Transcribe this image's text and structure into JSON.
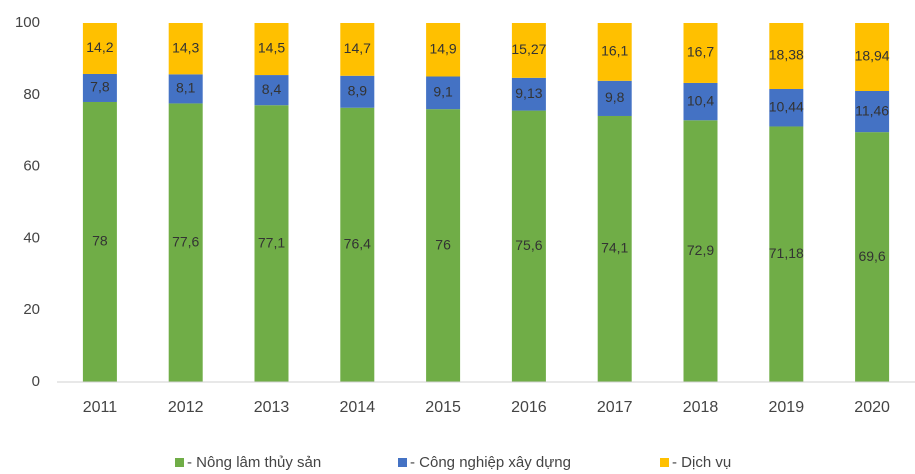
{
  "chart_data": {
    "type": "bar",
    "stacked": true,
    "categories": [
      "2011",
      "2012",
      "2013",
      "2014",
      "2015",
      "2016",
      "2017",
      "2018",
      "2019",
      "2020"
    ],
    "series": [
      {
        "name": "- Nông lâm thủy sản",
        "color": "#70ad47",
        "values": [
          78,
          77.6,
          77.1,
          76.4,
          76,
          75.6,
          74.1,
          72.9,
          71.18,
          69.6
        ],
        "value_labels": [
          "78",
          "77,6",
          "77,1",
          "76,4",
          "76",
          "75,6",
          "74,1",
          "72,9",
          "71,18",
          "69,6"
        ]
      },
      {
        "name": "- Công nghiệp xây dựng",
        "color": "#4472c4",
        "values": [
          7.8,
          8.1,
          8.4,
          8.9,
          9.1,
          9.13,
          9.8,
          10.4,
          10.44,
          11.46
        ],
        "value_labels": [
          "7,8",
          "8,1",
          "8,4",
          "8,9",
          "9,1",
          "9,13",
          "9,8",
          "10,4",
          "10,44",
          "11,46"
        ]
      },
      {
        "name": "- Dịch vụ",
        "color": "#ffc000",
        "values": [
          14.2,
          14.3,
          14.5,
          14.7,
          14.9,
          15.27,
          16.1,
          16.7,
          18.38,
          18.94
        ],
        "value_labels": [
          "14,2",
          "14,3",
          "14,5",
          "14,7",
          "14,9",
          "15,27",
          "16,1",
          "16,7",
          "18,38",
          "18,94"
        ]
      }
    ],
    "ylim": [
      0,
      100
    ],
    "yticks": [
      0,
      20,
      40,
      60,
      80,
      100
    ],
    "grid": false
  }
}
